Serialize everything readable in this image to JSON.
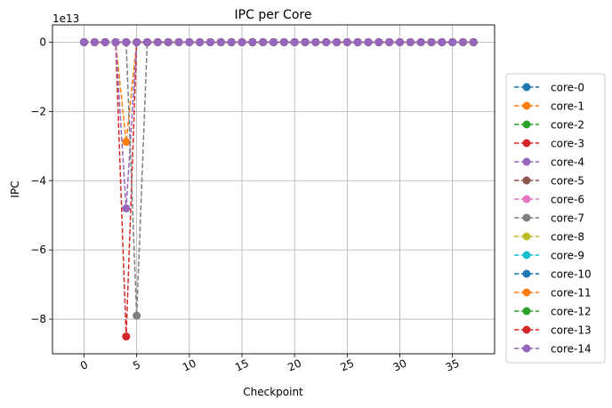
{
  "chart_data": {
    "type": "line",
    "title": "IPC per Core",
    "xlabel": "Checkpoint",
    "ylabel": "IPC",
    "offset_text": "1e13",
    "xlim": [
      -3,
      39
    ],
    "ylim": [
      -9.0,
      0.5
    ],
    "y_scale_multiplier": 10000000000000.0,
    "xticks": [
      0,
      5,
      10,
      15,
      20,
      25,
      30,
      35
    ],
    "yticks": [
      0,
      -2,
      -4,
      -6,
      -8
    ],
    "ytick_labels": [
      "0",
      "−2",
      "−4",
      "−6",
      "−8"
    ],
    "grid": true,
    "legend_position": "outside-right",
    "line_style": "dashed",
    "marker": "circle",
    "x": [
      0,
      1,
      2,
      3,
      4,
      5,
      6,
      7,
      8,
      9,
      10,
      11,
      12,
      13,
      14,
      15,
      16,
      17,
      18,
      19,
      20,
      21,
      22,
      23,
      24,
      25,
      26,
      27,
      28,
      29,
      30,
      31,
      32,
      33,
      34,
      35,
      36,
      37
    ],
    "series": [
      {
        "name": "core-0",
        "color": "#1f77b4",
        "anomalies": {}
      },
      {
        "name": "core-1",
        "color": "#ff7f0e",
        "anomalies": {
          "4": -2.88
        }
      },
      {
        "name": "core-2",
        "color": "#2ca02c",
        "anomalies": {}
      },
      {
        "name": "core-3",
        "color": "#d62728",
        "anomalies": {
          "4": -8.5
        }
      },
      {
        "name": "core-4",
        "color": "#9467bd",
        "anomalies": {
          "4": -4.8
        }
      },
      {
        "name": "core-5",
        "color": "#8c564b",
        "anomalies": {}
      },
      {
        "name": "core-6",
        "color": "#e377c2",
        "anomalies": {}
      },
      {
        "name": "core-7",
        "color": "#7f7f7f",
        "anomalies": {
          "5": -7.9
        }
      },
      {
        "name": "core-8",
        "color": "#bcbd22",
        "anomalies": {}
      },
      {
        "name": "core-9",
        "color": "#17becf",
        "anomalies": {}
      },
      {
        "name": "core-10",
        "color": "#1f77b4",
        "anomalies": {}
      },
      {
        "name": "core-11",
        "color": "#ff7f0e",
        "anomalies": {}
      },
      {
        "name": "core-12",
        "color": "#2ca02c",
        "anomalies": {}
      },
      {
        "name": "core-13",
        "color": "#d62728",
        "anomalies": {}
      },
      {
        "name": "core-14",
        "color": "#9467bd",
        "anomalies": {}
      }
    ]
  }
}
